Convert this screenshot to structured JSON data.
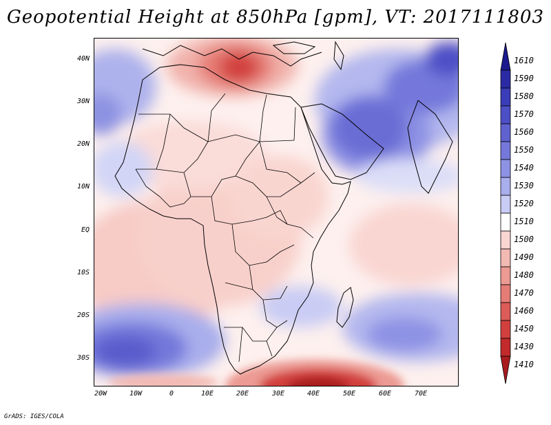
{
  "title": "Geopotential Height at 850hPa [gpm], VT: 2017111803",
  "map": {
    "variable": "Geopotential Height",
    "level": "850hPa",
    "units": "gpm",
    "valid_time": "2017111803",
    "lat_labels": [
      "40N",
      "30N",
      "20N",
      "10N",
      "EQ",
      "10S",
      "20S",
      "30S"
    ],
    "lon_labels": [
      "20W",
      "10W",
      "0",
      "10E",
      "20E",
      "30E",
      "40E",
      "50E",
      "60E",
      "70E"
    ],
    "features": [
      {
        "name": "Mediterranean-low",
        "value": 1430
      },
      {
        "name": "South-Atlantic-high",
        "value": 1560
      },
      {
        "name": "Arabian-high",
        "value": 1560
      },
      {
        "name": "South-Indian-Ocean-high",
        "value": 1550
      },
      {
        "name": "South-Africa-low",
        "value": 1430
      }
    ]
  },
  "colorbar": {
    "levels": [
      "1610",
      "1590",
      "1580",
      "1570",
      "1560",
      "1550",
      "1540",
      "1530",
      "1520",
      "1510",
      "1500",
      "1490",
      "1480",
      "1470",
      "1460",
      "1450",
      "1430",
      "1410"
    ],
    "colors": {
      "c1610": "#1b1a8e",
      "c1590": "#2a2aa4",
      "c1580": "#3b3cb8",
      "c1570": "#4d4fc6",
      "c1560": "#6062d0",
      "c1550": "#7578da",
      "c1540": "#8e92e4",
      "c1530": "#a9aeec",
      "c1520": "#c9ccf4",
      "c1510": "#ffffff",
      "c1500": "#f9d6d2",
      "c1490": "#f3b9b3",
      "c1480": "#ec9a93",
      "c1470": "#e57c75",
      "c1460": "#dc5c58",
      "c1450": "#d2403e",
      "c1430": "#c22a2b",
      "c1410": "#a81c1f"
    }
  },
  "footer": "GrADS: IGES/COLA"
}
